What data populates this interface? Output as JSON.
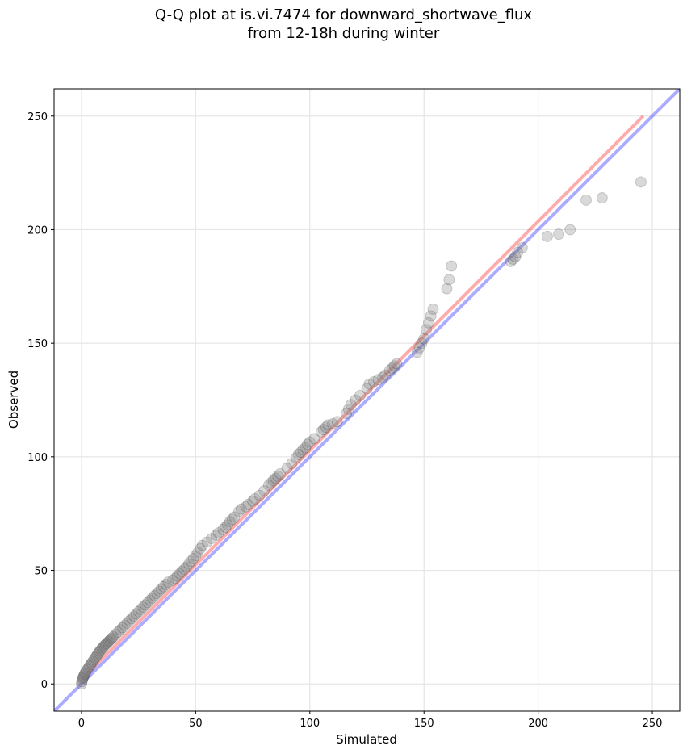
{
  "chart_data": {
    "type": "scatter",
    "title_lines": [
      "Q-Q plot at is.vi.7474 for downward_shortwave_flux",
      "from 12-18h during winter"
    ],
    "xlabel": "Simulated",
    "ylabel": "Observed",
    "xlim": [
      -12,
      262
    ],
    "ylim": [
      -12,
      262
    ],
    "xticks": [
      0,
      50,
      100,
      150,
      200,
      250
    ],
    "yticks": [
      0,
      50,
      100,
      150,
      200,
      250
    ],
    "grid": true,
    "lines": [
      {
        "name": "one-to-one",
        "color": "#0000ff",
        "alpha": 0.33,
        "x": [
          -12,
          262
        ],
        "y": [
          -12,
          262
        ]
      },
      {
        "name": "fit",
        "color": "#ff0000",
        "alpha": 0.33,
        "x": [
          0,
          246
        ],
        "y": [
          2,
          250
        ]
      }
    ],
    "points": {
      "color": "#808080",
      "x": [
        0,
        0.2,
        0.4,
        0.6,
        0.8,
        1,
        1.3,
        1.6,
        2,
        2.5,
        3,
        3.5,
        4,
        4.5,
        5,
        5.5,
        6,
        6.5,
        7,
        7.5,
        8,
        8.5,
        9,
        9.5,
        10,
        10.5,
        11,
        11.5,
        12,
        12.5,
        13,
        13.5,
        14,
        15,
        16,
        17,
        18,
        19,
        20,
        21,
        22,
        23,
        24,
        25,
        26,
        27,
        28,
        29,
        30,
        31,
        32,
        33,
        34,
        35,
        36,
        37,
        38,
        40,
        41,
        42,
        43,
        44,
        45,
        46,
        47,
        48,
        49,
        50,
        51,
        52,
        53,
        55,
        57,
        59,
        60,
        62,
        63,
        64,
        65,
        66,
        67,
        69,
        70,
        72,
        73,
        75,
        76,
        78,
        80,
        82,
        83,
        84,
        85,
        86,
        87,
        90,
        92,
        94,
        95,
        96,
        97,
        98,
        99,
        100,
        102,
        105,
        106,
        107,
        108,
        110,
        112,
        116,
        117,
        118,
        120,
        122,
        125,
        126,
        128,
        130,
        132,
        133,
        135,
        136,
        137,
        138,
        147,
        148,
        149,
        150,
        151,
        152,
        153,
        154,
        160,
        161,
        162,
        188,
        189,
        190,
        191,
        193,
        204,
        209,
        214,
        221,
        228,
        245
      ],
      "y": [
        0,
        1,
        1.8,
        2.5,
        3,
        3.5,
        4.2,
        4.8,
        5.5,
        6.2,
        7,
        7.8,
        8.5,
        9.2,
        10,
        10.7,
        11.5,
        12.2,
        13,
        13.7,
        14.4,
        15,
        15.6,
        16.2,
        16.8,
        17.3,
        17.8,
        18.3,
        18.8,
        19.3,
        19.8,
        20.3,
        20.8,
        21.8,
        22.8,
        23.8,
        24.8,
        25.8,
        26.8,
        27.8,
        28.8,
        29.8,
        30.8,
        31.8,
        32.8,
        33.8,
        34.8,
        35.8,
        36.8,
        37.8,
        38.8,
        39.8,
        40.8,
        41.8,
        42.8,
        43.8,
        44.8,
        45.6,
        46.5,
        47.5,
        48.5,
        49.5,
        50.5,
        51.5,
        52.8,
        54,
        55.2,
        56.5,
        58,
        59.5,
        61,
        62.5,
        64,
        65.5,
        66.5,
        68,
        69,
        70,
        71.5,
        72.5,
        73.5,
        76,
        77,
        78,
        79,
        80.5,
        81.5,
        83,
        85,
        87.5,
        88.5,
        89.5,
        90.5,
        91.5,
        92.5,
        95,
        97,
        99.5,
        101,
        102,
        103,
        104,
        105.5,
        106.5,
        108,
        111,
        112,
        113,
        114,
        114.5,
        115.5,
        119,
        121,
        123,
        125,
        127,
        130,
        132,
        133,
        134,
        135,
        136,
        138,
        139,
        140,
        141,
        146,
        148,
        150,
        152,
        156,
        159,
        162,
        165,
        174,
        178,
        184,
        186,
        187,
        188,
        190,
        192,
        197,
        198,
        200,
        213,
        214,
        221
      ]
    }
  }
}
